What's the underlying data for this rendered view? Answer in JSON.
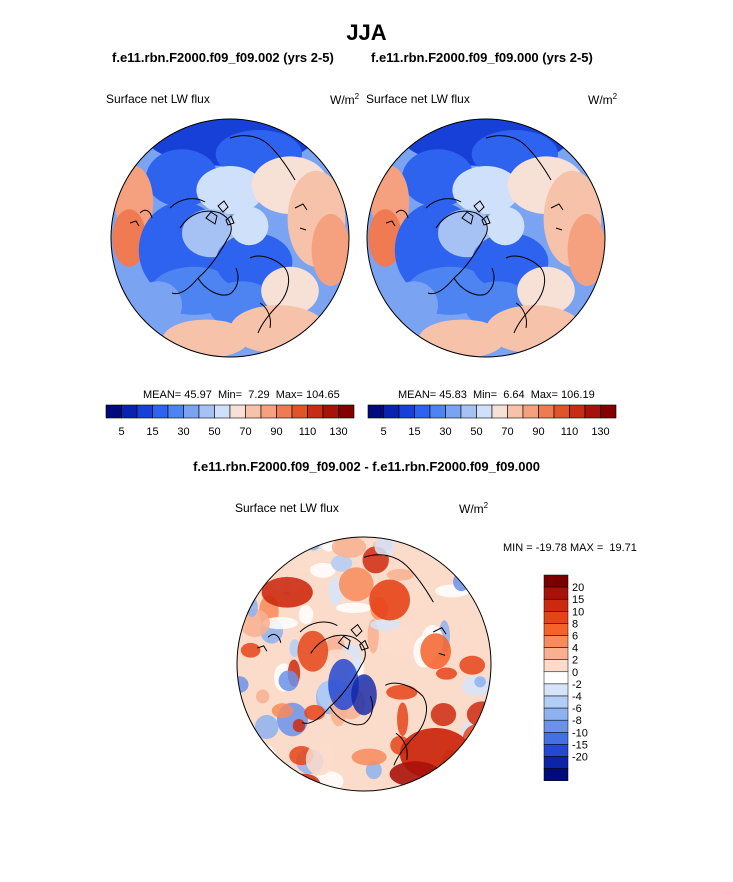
{
  "page": {
    "title": "JJA",
    "pair_case_a": "f.e11.rbn.F2000.f09_f09.002 (yrs 2-5)",
    "pair_case_b": "f.e11.rbn.F2000.f09_f09.000 (yrs 2-5)",
    "diff_title": "f.e11.rbn.F2000.f09_f09.002 - f.e11.rbn.F2000.f09_f09.000"
  },
  "panels": [
    {
      "variable": "Surface net LW flux",
      "units_base": "W/m",
      "units_sup": "2",
      "stats_mean_label": "MEAN=",
      "stats_mean": "45.97",
      "stats_min_label": "Min=",
      "stats_min": "7.29",
      "stats_max_label": "Max=",
      "stats_max": "104.65"
    },
    {
      "variable": "Surface net LW flux",
      "units_base": "W/m",
      "units_sup": "2",
      "stats_mean_label": "MEAN=",
      "stats_mean": "45.83",
      "stats_min_label": "Min=",
      "stats_min": "6.64",
      "stats_max_label": "Max=",
      "stats_max": "106.19"
    },
    {
      "variable": "Surface net LW flux",
      "units_base": "W/m",
      "units_sup": "2",
      "minmax_text": "MIN = -19.78 MAX =  19.71"
    }
  ],
  "chart_data": [
    {
      "type": "heatmap",
      "title": "Surface net LW flux",
      "subtitle": "f.e11.rbn.F2000.f09_f09.002 (yrs 2-5)",
      "projection": "north polar stereographic",
      "units": "W/m2",
      "stats": {
        "mean": 45.97,
        "min": 7.29,
        "max": 104.65
      },
      "colorbar": {
        "orientation": "horizontal",
        "levels": [
          5,
          10,
          15,
          20,
          30,
          40,
          50,
          60,
          70,
          80,
          90,
          100,
          110,
          120,
          130
        ],
        "tick_labels": [
          "5",
          "15",
          "30",
          "50",
          "70",
          "90",
          "110",
          "130"
        ],
        "colors": [
          "#000a7a",
          "#0a22b0",
          "#1740d8",
          "#2e63f0",
          "#4d84f2",
          "#7aa4f2",
          "#a6c2f4",
          "#cfe0fa",
          "#f7e0d5",
          "#f7c2aa",
          "#f5a07e",
          "#f07a52",
          "#e0542a",
          "#c52d14",
          "#a4140a",
          "#820000"
        ]
      }
    },
    {
      "type": "heatmap",
      "title": "Surface net LW flux",
      "subtitle": "f.e11.rbn.F2000.f09_f09.000 (yrs 2-5)",
      "projection": "north polar stereographic",
      "units": "W/m2",
      "stats": {
        "mean": 45.83,
        "min": 6.64,
        "max": 106.19
      },
      "colorbar": {
        "orientation": "horizontal",
        "levels": [
          5,
          10,
          15,
          20,
          30,
          40,
          50,
          60,
          70,
          80,
          90,
          100,
          110,
          120,
          130
        ],
        "tick_labels": [
          "5",
          "15",
          "30",
          "50",
          "70",
          "90",
          "110",
          "130"
        ],
        "colors": [
          "#000a7a",
          "#0a22b0",
          "#1740d8",
          "#2e63f0",
          "#4d84f2",
          "#7aa4f2",
          "#a6c2f4",
          "#cfe0fa",
          "#f7e0d5",
          "#f7c2aa",
          "#f5a07e",
          "#f07a52",
          "#e0542a",
          "#c52d14",
          "#a4140a",
          "#820000"
        ]
      }
    },
    {
      "type": "heatmap",
      "title": "Surface net LW flux",
      "subtitle": "f.e11.rbn.F2000.f09_f09.002 - f.e11.rbn.F2000.f09_f09.000",
      "projection": "north polar stereographic",
      "units": "W/m2",
      "stats": {
        "min": -19.78,
        "max": 19.71
      },
      "colorbar": {
        "orientation": "vertical",
        "levels": [
          20,
          15,
          10,
          8,
          6,
          4,
          2,
          0,
          -2,
          -4,
          -6,
          -8,
          -10,
          -15,
          -20
        ],
        "tick_labels": [
          "20",
          "15",
          "10",
          "8",
          "6",
          "4",
          "2",
          "0",
          "-2",
          "-4",
          "-6",
          "-8",
          "-10",
          "-15",
          "-20"
        ],
        "colors": [
          "#7a0000",
          "#a8120a",
          "#cc2a10",
          "#e54418",
          "#f5622a",
          "#f78b5c",
          "#f8b090",
          "#fbdccb",
          "#ffffff",
          "#d6e4fa",
          "#b2cdf6",
          "#8eb1f0",
          "#6a92ea",
          "#4570e2",
          "#2448d0",
          "#0e24a8",
          "#000a78"
        ]
      }
    }
  ]
}
